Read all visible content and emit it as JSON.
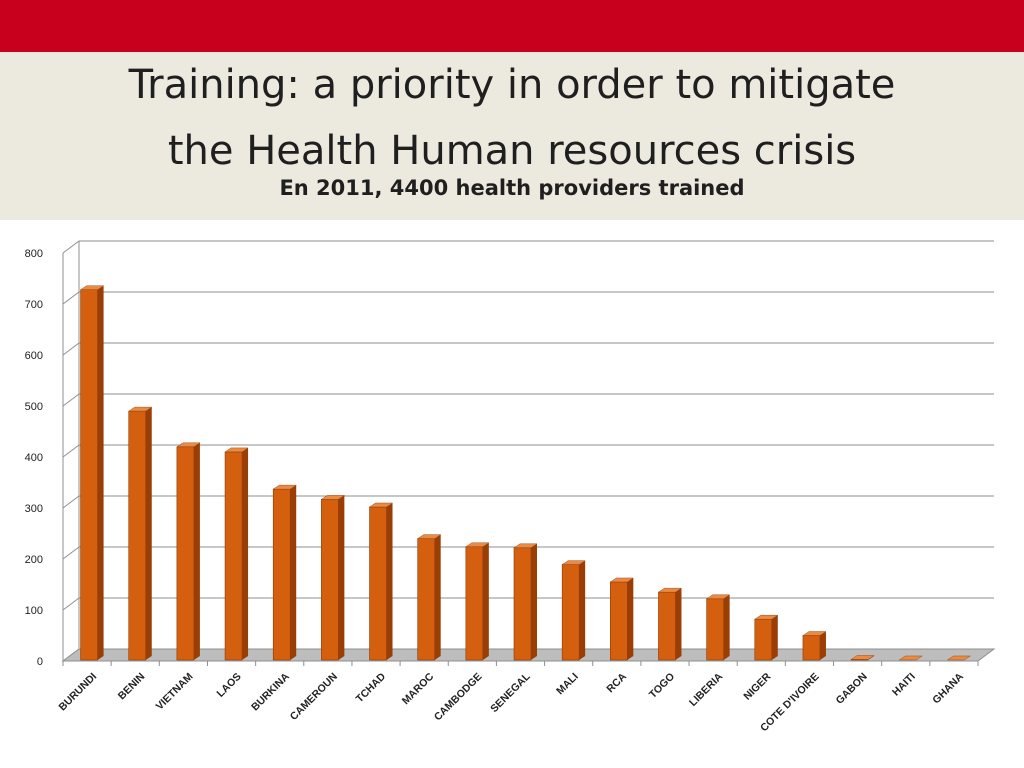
{
  "slide": {
    "title_line1": "Training:  a priority in order to mitigate",
    "title_line2": "the Health Human resources crisis",
    "subtitle": "En 2011, 4400 health providers trained"
  },
  "colors": {
    "top_bar": "#c8001e",
    "header_bg": "#ece9df",
    "bar_front": "#d4600f",
    "bar_side": "#9a3e05",
    "bar_top": "#e98a45",
    "floor": "#bdbdbd"
  },
  "chart_data": {
    "type": "bar",
    "title": "",
    "xlabel": "",
    "ylabel": "",
    "ylim": [
      0,
      800
    ],
    "yticks": [
      0,
      100,
      200,
      300,
      400,
      500,
      600,
      700,
      800
    ],
    "grid": true,
    "categories": [
      "BURUNDI",
      "BENIN",
      "VIETNAM",
      "LAOS",
      "BURKINA",
      "CAMEROUN",
      "TCHAD",
      "MAROC",
      "CAMBODGE",
      "SENEGAL",
      "MALI",
      "RCA",
      "TOGO",
      "LIBERIA",
      "NIGER",
      "COTE D'IVOIRE",
      "GABON",
      "HAITI",
      "GHANA"
    ],
    "values": [
      728,
      490,
      420,
      410,
      337,
      317,
      302,
      240,
      224,
      222,
      189,
      155,
      135,
      122,
      82,
      50,
      3,
      2,
      2
    ]
  }
}
